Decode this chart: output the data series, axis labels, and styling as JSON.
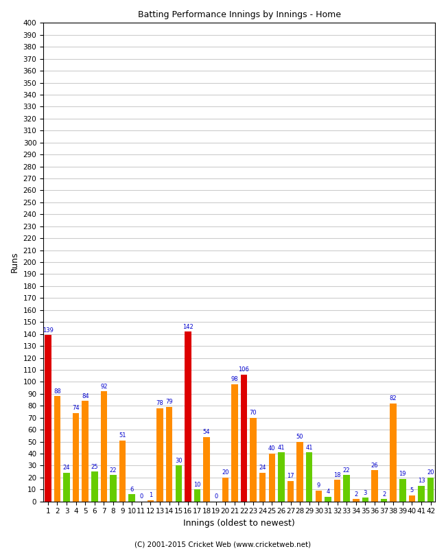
{
  "title": "Batting Performance Innings by Innings - Home",
  "xlabel": "Innings (oldest to newest)",
  "ylabel": "Runs",
  "footer": "(C) 2001-2015 Cricket Web (www.cricketweb.net)",
  "ylim": [
    0,
    400
  ],
  "yticks": [
    0,
    10,
    20,
    30,
    40,
    50,
    60,
    70,
    80,
    90,
    100,
    110,
    120,
    130,
    140,
    150,
    160,
    170,
    180,
    190,
    200,
    210,
    220,
    230,
    240,
    250,
    260,
    270,
    280,
    290,
    300,
    310,
    320,
    330,
    340,
    350,
    360,
    370,
    380,
    390,
    400
  ],
  "innings": [
    1,
    2,
    3,
    4,
    5,
    6,
    7,
    8,
    9,
    10,
    11,
    12,
    13,
    14,
    15,
    16,
    17,
    18,
    19,
    20,
    21,
    22,
    23,
    24,
    25,
    26,
    27,
    28,
    29,
    30,
    31,
    32,
    33,
    34,
    35,
    36,
    37,
    38,
    39,
    40,
    41,
    42
  ],
  "colors": {
    "red": "#dd0000",
    "orange": "#ff8c00",
    "green": "#66cc00",
    "background": "#ffffff",
    "grid": "#cccccc",
    "label_color": "#0000cc",
    "axis_color": "#000000",
    "footer_color": "#000000"
  },
  "bar_data": [
    {
      "inning": 1,
      "value": 139,
      "color": "red"
    },
    {
      "inning": 2,
      "value": 88,
      "color": "orange"
    },
    {
      "inning": 2,
      "value": 24,
      "color": "green"
    },
    {
      "inning": 3,
      "value": 74,
      "color": "orange"
    },
    {
      "inning": 4,
      "value": 84,
      "color": "orange"
    },
    {
      "inning": 4,
      "value": 25,
      "color": "green"
    },
    {
      "inning": 5,
      "value": 92,
      "color": "orange"
    },
    {
      "inning": 5,
      "value": 22,
      "color": "green"
    },
    {
      "inning": 6,
      "value": 51,
      "color": "orange"
    },
    {
      "inning": 6,
      "value": 6,
      "color": "green"
    },
    {
      "inning": 7,
      "value": 0,
      "color": "orange"
    },
    {
      "inning": 8,
      "value": 1,
      "color": "orange"
    },
    {
      "inning": 9,
      "value": 78,
      "color": "orange"
    },
    {
      "inning": 10,
      "value": 79,
      "color": "orange"
    },
    {
      "inning": 10,
      "value": 30,
      "color": "green"
    },
    {
      "inning": 11,
      "value": 142,
      "color": "red"
    },
    {
      "inning": 12,
      "value": 10,
      "color": "green"
    },
    {
      "inning": 13,
      "value": 54,
      "color": "orange"
    },
    {
      "inning": 14,
      "value": 0,
      "color": "orange"
    },
    {
      "inning": 15,
      "value": 20,
      "color": "orange"
    },
    {
      "inning": 16,
      "value": 98,
      "color": "orange"
    },
    {
      "inning": 17,
      "value": 106,
      "color": "red"
    },
    {
      "inning": 17,
      "value": 70,
      "color": "orange"
    },
    {
      "inning": 18,
      "value": 24,
      "color": "orange"
    },
    {
      "inning": 19,
      "value": 40,
      "color": "orange"
    },
    {
      "inning": 19,
      "value": 41,
      "color": "green"
    },
    {
      "inning": 20,
      "value": 17,
      "color": "orange"
    },
    {
      "inning": 21,
      "value": 50,
      "color": "orange"
    },
    {
      "inning": 21,
      "value": 41,
      "color": "green"
    },
    {
      "inning": 22,
      "value": 9,
      "color": "orange"
    },
    {
      "inning": 22,
      "value": 4,
      "color": "green"
    },
    {
      "inning": 23,
      "value": 18,
      "color": "orange"
    },
    {
      "inning": 23,
      "value": 22,
      "color": "green"
    },
    {
      "inning": 24,
      "value": 2,
      "color": "orange"
    },
    {
      "inning": 24,
      "value": 3,
      "color": "green"
    },
    {
      "inning": 25,
      "value": 26,
      "color": "orange"
    },
    {
      "inning": 25,
      "value": 2,
      "color": "green"
    },
    {
      "inning": 26,
      "value": 82,
      "color": "orange"
    },
    {
      "inning": 26,
      "value": 19,
      "color": "green"
    },
    {
      "inning": 27,
      "value": 5,
      "color": "orange"
    },
    {
      "inning": 27,
      "value": 13,
      "color": "green"
    },
    {
      "inning": 28,
      "value": 20,
      "color": "green"
    }
  ],
  "bar_width": 0.35,
  "label_fontsize": 6.0,
  "axis_label_fontsize": 9,
  "tick_fontsize": 7.5,
  "figsize": [
    6.5,
    8.0
  ],
  "dpi": 100
}
